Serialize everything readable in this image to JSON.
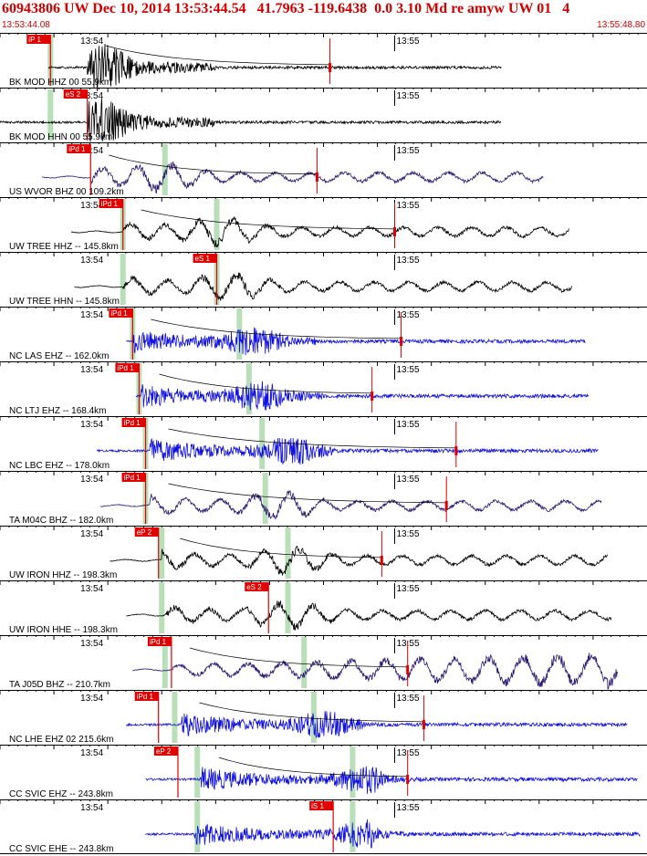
{
  "header": {
    "title": "60943806 UW Dec 10, 2014 13:53:44.54   41.7963 -119.6438  0.0 3.10 Md re amyw UW 01   4",
    "start_time": "13:53:44.08",
    "end_time": "13:55:48.80"
  },
  "colors": {
    "header_text": "#d40000",
    "pick_flag": "#e00000",
    "pick_window": "#b9dfb9",
    "trace_black": "#000000",
    "trace_blue": "#1010e0",
    "trace_purple": "#2a1870"
  },
  "chart_data": {
    "type": "line",
    "title": "",
    "xlabel": "",
    "ylabel": "",
    "x_range": [
      "13:53:44.08",
      "13:55:48.80"
    ],
    "time_ticks": [
      "13:54",
      "13:55"
    ],
    "series": [
      {
        "name": "BK MOD HHZ 00 55.9km",
        "color": "black",
        "start": 0.075,
        "end": 0.775,
        "onset": 0.135,
        "peak": 0.16,
        "envelope": "local",
        "pick_label": "iP 1",
        "pick_pos": 0.078,
        "red_tick_pos": 0.51,
        "green_pos": 0.078
      },
      {
        "name": "BK MOD HHN 00 55.9km",
        "color": "black",
        "start": 0.0,
        "end": 0.775,
        "onset": 0.135,
        "peak": 0.16,
        "envelope": "local",
        "pick_label": "eS 2",
        "pick_pos": 0.135,
        "green_pos": 0.078
      },
      {
        "name": "US WVOR BHZ 00 109.2km",
        "color": "purple",
        "start": 0.065,
        "end": 0.84,
        "onset": 0.14,
        "peak": 0.25,
        "envelope": "broad",
        "pick_label": "iPd 1",
        "pick_pos": 0.14,
        "red_tick_pos": 0.49,
        "green_pos": 0.255
      },
      {
        "name": "UW TREE HHZ -- 145.8km",
        "color": "black",
        "start": 0.11,
        "end": 0.88,
        "onset": 0.19,
        "peak": 0.34,
        "envelope": "broad",
        "pick_label": "iPd 1",
        "pick_pos": 0.19,
        "red_tick_pos": 0.61,
        "green_pos": 0.19,
        "green2_pos": 0.335
      },
      {
        "name": "UW TREE HHN -- 145.8km",
        "color": "black",
        "start": 0.115,
        "end": 0.885,
        "onset": 0.19,
        "peak": 0.355,
        "envelope": "broad",
        "pick_label": "eS 1",
        "pick_pos": 0.335,
        "green_pos": 0.19,
        "green2_pos": 0.335
      },
      {
        "name": "NC LAS EHZ -- 162.0km",
        "color": "blue",
        "start": 0.195,
        "end": 0.905,
        "onset": 0.205,
        "peak": 0.39,
        "envelope": "regional",
        "pick_label": "iPd 1",
        "pick_pos": 0.205,
        "red_tick_pos": 0.62,
        "green_pos": 0.205,
        "green2_pos": 0.37
      },
      {
        "name": "NC LTJ EHZ -- 168.4km",
        "color": "blue",
        "start": 0.21,
        "end": 0.91,
        "onset": 0.218,
        "peak": 0.4,
        "envelope": "regional",
        "pick_label": "iPd 1",
        "pick_pos": 0.215,
        "red_tick_pos": 0.575,
        "green_pos": 0.215,
        "green2_pos": 0.385
      },
      {
        "name": "NC LBC EHZ -- 178.0km",
        "color": "blue",
        "start": 0.15,
        "end": 0.925,
        "onset": 0.232,
        "peak": 0.45,
        "envelope": "regional",
        "pick_label": "iPd 1",
        "pick_pos": 0.225,
        "red_tick_pos": 0.705,
        "green_pos": 0.225,
        "green2_pos": 0.405
      },
      {
        "name": "TA M04C BHZ -- 182.0km",
        "color": "purple",
        "start": 0.155,
        "end": 0.93,
        "onset": 0.232,
        "peak": 0.43,
        "envelope": "broad",
        "pick_label": "iPd 1",
        "pick_pos": 0.225,
        "red_tick_pos": 0.69,
        "green_pos": 0.225,
        "green2_pos": 0.41
      },
      {
        "name": "UW IRON HHZ -- 198.3km",
        "color": "black",
        "start": 0.17,
        "end": 0.94,
        "onset": 0.25,
        "peak": 0.45,
        "envelope": "broad",
        "pick_label": "eP 2",
        "pick_pos": 0.245,
        "red_tick_pos": 0.59,
        "green_pos": 0.25,
        "green2_pos": 0.445
      },
      {
        "name": "UW IRON HHE -- 198.3km",
        "color": "black",
        "start": 0.195,
        "end": 0.945,
        "onset": 0.255,
        "peak": 0.445,
        "envelope": "broad",
        "pick_label": "eS 2",
        "pick_pos": 0.415,
        "green_pos": 0.25,
        "green2_pos": 0.445
      },
      {
        "name": "TA J05D BHZ -- 210.7km",
        "color": "purple",
        "start": 0.205,
        "end": 0.955,
        "onset": 0.265,
        "peak": 0.8,
        "envelope": "rising",
        "pick_label": "iPd 1",
        "pick_pos": 0.265,
        "red_tick_pos": 0.63,
        "green_pos": 0.255,
        "green2_pos": 0.47
      },
      {
        "name": "NC LHE EHZ 02 215.6km",
        "color": "blue",
        "start": 0.195,
        "end": 0.97,
        "onset": 0.28,
        "peak": 0.5,
        "envelope": "regional",
        "pick_label": "iPd 1",
        "pick_pos": 0.245,
        "red_tick_pos": 0.655,
        "green_pos": 0.27,
        "green2_pos": 0.485
      },
      {
        "name": "CC SVIC EHZ -- 243.8km",
        "color": "blue",
        "start": 0.225,
        "end": 0.985,
        "onset": 0.31,
        "peak": 0.565,
        "envelope": "regional",
        "pick_label": "eP 2",
        "pick_pos": 0.275,
        "red_tick_pos": 0.63,
        "green_pos": 0.305,
        "green2_pos": 0.545
      },
      {
        "name": "CC SVIC EHE -- 243.8km",
        "color": "blue",
        "start": 0.225,
        "end": 0.99,
        "onset": 0.3,
        "peak": 0.565,
        "envelope": "regional",
        "pick_label": "iS 1",
        "pick_pos": 0.515,
        "green_pos": 0.305,
        "green2_pos": 0.545
      }
    ]
  }
}
